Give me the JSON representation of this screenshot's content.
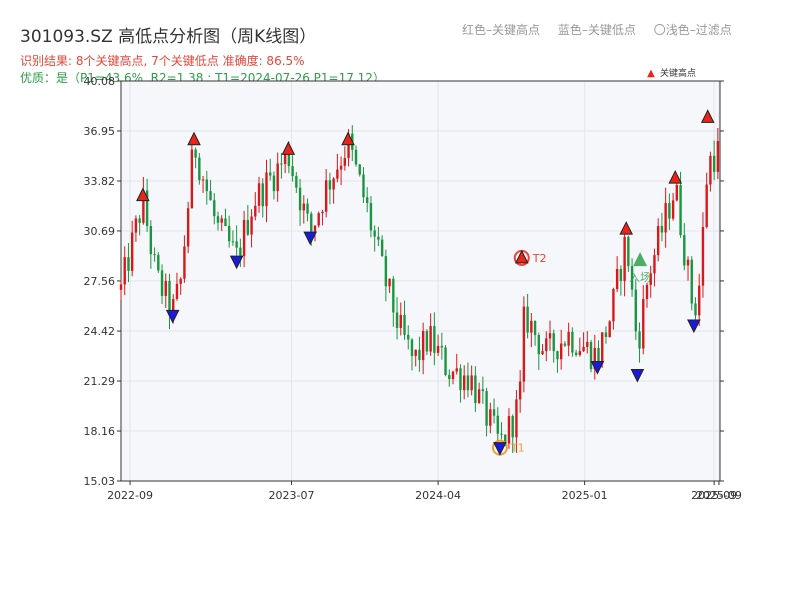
{
  "header": {
    "title": "301093.SZ 高低点分析图（周K线图）",
    "result_line": "识别结果: 8个关键高点, 7个关键低点  准确度: 86.5%",
    "quality_line": "优质：是（P1=43.6%, R2=1.38 ; T1=2024-07-26 P1=17.12）",
    "top_legend": [
      "红色–关键高点",
      "蓝色–关键低点",
      "〇浅色–过滤点"
    ]
  },
  "legend": {
    "items": [
      {
        "label": "关键高点",
        "color": "#e8241b"
      },
      {
        "label": "关键低点",
        "color": "#1a1adb"
      },
      {
        "label": "过滤点",
        "color": "#ffffff"
      }
    ]
  },
  "colors": {
    "up": "#d7191c",
    "down": "#1a9641",
    "high": "#e8241b",
    "low": "#1a1adb",
    "t_circle": "#f0a030",
    "t2_circle": "#e8473a",
    "entry": "#2ea04b"
  },
  "chart_data": {
    "type": "candlestick",
    "title": "301093.SZ 高低点分析图（周K线图）",
    "ylim": [
      15.03,
      40.08
    ],
    "yticks": [
      "15.03",
      "18.16",
      "21.29",
      "24.42",
      "27.56",
      "30.69",
      "33.82",
      "36.95",
      "40.08"
    ],
    "xticks": [
      {
        "label": "2022-09",
        "date": "2022-09-01"
      },
      {
        "label": "2023-07",
        "date": "2023-07-01"
      },
      {
        "label": "2024-04",
        "date": "2024-04-01"
      },
      {
        "label": "2025-01",
        "date": "2025-01-01"
      },
      {
        "label": "2025-09",
        "date": "2025-09-01"
      },
      {
        "label": "2025-09",
        "date": "2025-09-10"
      }
    ],
    "xlim": [
      "2022-08-15",
      "2025-09-12"
    ],
    "highs": [
      {
        "date": "2022-09-25",
        "value": 32.9
      },
      {
        "date": "2022-12-30",
        "value": 36.4
      },
      {
        "date": "2023-06-25",
        "value": 35.8
      },
      {
        "date": "2023-10-15",
        "value": 36.4
      },
      {
        "date": "2024-09-05",
        "value": 29.0,
        "label": "T2"
      },
      {
        "date": "2025-03-20",
        "value": 30.8
      },
      {
        "date": "2025-06-20",
        "value": 34.0
      },
      {
        "date": "2025-08-20",
        "value": 37.8
      }
    ],
    "lows": [
      {
        "date": "2022-11-20",
        "value": 25.4
      },
      {
        "date": "2023-03-20",
        "value": 28.8
      },
      {
        "date": "2023-08-05",
        "value": 30.3
      },
      {
        "date": "2024-07-26",
        "value": 17.12,
        "label": "T1"
      },
      {
        "date": "2025-01-25",
        "value": 22.2
      },
      {
        "date": "2025-04-10",
        "value": 21.7
      },
      {
        "date": "2025-07-25",
        "value": 24.8
      }
    ],
    "entry": {
      "date": "2025-04-15",
      "value": 28.8,
      "label": "入场"
    },
    "path": [
      [
        "2022-08-15",
        27.0
      ],
      [
        "2022-09-25",
        32.6
      ],
      [
        "2022-10-20",
        27.8
      ],
      [
        "2022-11-20",
        25.6
      ],
      [
        "2022-12-05",
        27.5
      ],
      [
        "2022-12-30",
        36.2
      ],
      [
        "2023-02-10",
        31.0
      ],
      [
        "2023-03-20",
        29.0
      ],
      [
        "2023-04-20",
        32.5
      ],
      [
        "2023-06-25",
        35.5
      ],
      [
        "2023-08-05",
        30.5
      ],
      [
        "2023-09-05",
        33.5
      ],
      [
        "2023-10-15",
        36.2
      ],
      [
        "2023-11-20",
        32.0
      ],
      [
        "2023-12-20",
        28.0
      ],
      [
        "2024-01-20",
        24.5
      ],
      [
        "2024-02-15",
        22.5
      ],
      [
        "2024-03-15",
        24.0
      ],
      [
        "2024-04-20",
        22.0
      ],
      [
        "2024-06-01",
        21.5
      ],
      [
        "2024-06-25",
        19.5
      ],
      [
        "2024-07-26",
        17.3
      ],
      [
        "2024-08-15",
        18.5
      ],
      [
        "2024-09-01",
        20.0
      ],
      [
        "2024-09-10",
        25.5
      ],
      [
        "2024-10-20",
        23.0
      ],
      [
        "2024-12-01",
        24.2
      ],
      [
        "2025-01-25",
        22.8
      ],
      [
        "2025-02-20",
        25.5
      ],
      [
        "2025-03-20",
        30.2
      ],
      [
        "2025-04-10",
        23.5
      ],
      [
        "2025-05-01",
        28.0
      ],
      [
        "2025-06-20",
        33.5
      ],
      [
        "2025-07-25",
        25.5
      ],
      [
        "2025-08-05",
        27.5
      ],
      [
        "2025-08-20",
        35.0
      ],
      [
        "2025-09-12",
        35.8
      ]
    ]
  }
}
